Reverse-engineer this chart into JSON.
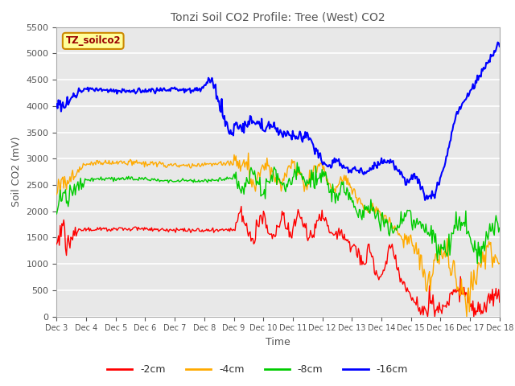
{
  "title": "Tonzi Soil CO2 Profile: Tree (West) CO2",
  "xlabel": "Time",
  "ylabel": "Soil CO2 (mV)",
  "ylim": [
    0,
    5500
  ],
  "yticks": [
    0,
    500,
    1000,
    1500,
    2000,
    2500,
    3000,
    3500,
    4000,
    4500,
    5000,
    5500
  ],
  "plot_bg_color": "#e8e8e8",
  "legend_labels": [
    "-2cm",
    "-4cm",
    "-8cm",
    "-16cm"
  ],
  "legend_colors": [
    "#ff0000",
    "#ffaa00",
    "#00cc00",
    "#0000ff"
  ],
  "watermark_text": "TZ_soilco2",
  "watermark_bg": "#ffff99",
  "watermark_border": "#cc8800",
  "watermark_text_color": "#990000",
  "n_points": 500,
  "x_start": 3,
  "x_end": 18,
  "xtick_labels": [
    "Dec 3",
    "Dec 4",
    "Dec 5",
    "Dec 6",
    "Dec 7",
    "Dec 8",
    "Dec 9",
    "Dec 10",
    "Dec 11",
    "Dec 12",
    "Dec 13",
    "Dec 14",
    "Dec 15",
    "Dec 16",
    "Dec 17",
    "Dec 18"
  ],
  "xtick_positions": [
    3,
    4,
    5,
    6,
    7,
    8,
    9,
    10,
    11,
    12,
    13,
    14,
    15,
    16,
    17,
    18
  ]
}
